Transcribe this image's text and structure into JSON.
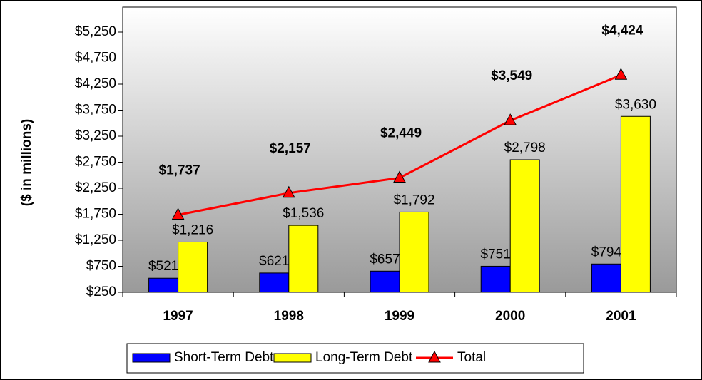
{
  "chart_data": {
    "type": "bar",
    "y_axis_label": "($ in millions)",
    "categories": [
      "1997",
      "1998",
      "1999",
      "2000",
      "2001"
    ],
    "series": [
      {
        "name": "Short-Term Debt",
        "type": "bar",
        "color": "#0000ff",
        "values": [
          521,
          621,
          657,
          751,
          794
        ],
        "value_labels": [
          "$521",
          "$621",
          "$657",
          "$751",
          "$794"
        ]
      },
      {
        "name": "Long-Term Debt",
        "type": "bar",
        "color": "#ffff00",
        "values": [
          1216,
          1536,
          1792,
          2798,
          3630
        ],
        "value_labels": [
          "$1,216",
          "$1,536",
          "$1,792",
          "$2,798",
          "$3,630"
        ]
      },
      {
        "name": "Total",
        "type": "line",
        "color": "#ff0000",
        "values": [
          1737,
          2157,
          2449,
          3549,
          4424
        ],
        "value_labels": [
          "$1,737",
          "$2,157",
          "$2,449",
          "$3,549",
          "$4,424"
        ]
      }
    ],
    "ylim": [
      250,
      5250
    ],
    "yticks": [
      {
        "value": 250,
        "label": "$250"
      },
      {
        "value": 750,
        "label": "$750"
      },
      {
        "value": 1250,
        "label": "$1,250"
      },
      {
        "value": 1750,
        "label": "$1,750"
      },
      {
        "value": 2250,
        "label": "$2,250"
      },
      {
        "value": 2750,
        "label": "$2,750"
      },
      {
        "value": 3250,
        "label": "$3,250"
      },
      {
        "value": 3750,
        "label": "$3,750"
      },
      {
        "value": 4250,
        "label": "$4,250"
      },
      {
        "value": 4750,
        "label": "$4,750"
      },
      {
        "value": 5250,
        "label": "$5,250"
      }
    ]
  }
}
